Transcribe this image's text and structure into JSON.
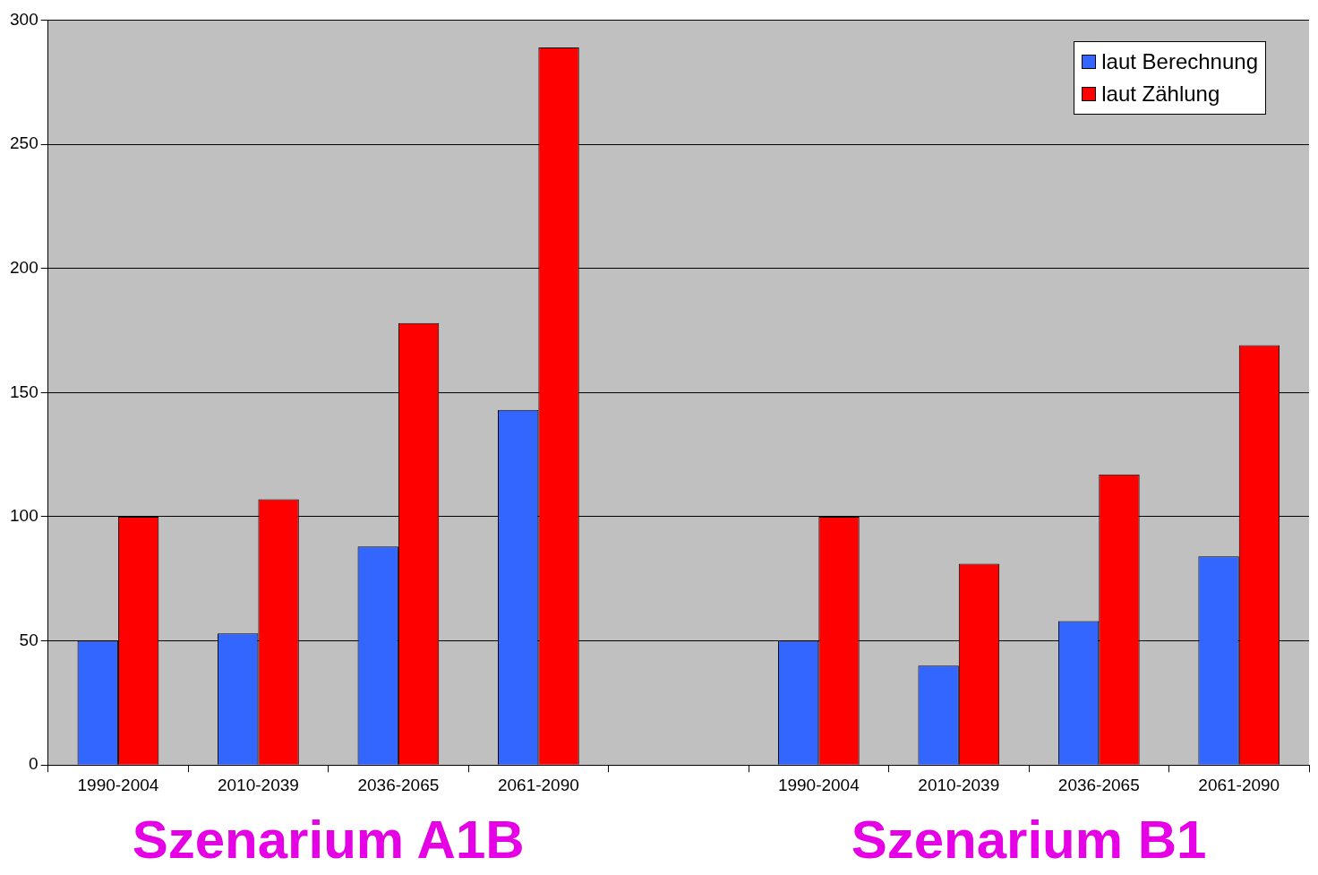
{
  "chart_data": {
    "type": "bar",
    "categories": [
      "1990-2004",
      "2010-2039",
      "2036-2065",
      "2061-2090",
      null,
      "1990-2004",
      "2010-2039",
      "2036-2065",
      "2061-2090"
    ],
    "series": [
      {
        "name": "laut Berechnung",
        "color": "#3366ff",
        "values": [
          50,
          53,
          88,
          143,
          null,
          50,
          40,
          58,
          84
        ]
      },
      {
        "name": "laut Zählung",
        "color": "#ff0000",
        "values": [
          100,
          107,
          178,
          289,
          null,
          100,
          81,
          117,
          169
        ]
      }
    ],
    "ylim": [
      0,
      300
    ],
    "yticks": [
      0,
      50,
      100,
      150,
      200,
      250,
      300
    ],
    "grid": "y",
    "legend": "top right",
    "annotations": [
      "Szenarium A1B",
      "Szenarium B1"
    ]
  }
}
